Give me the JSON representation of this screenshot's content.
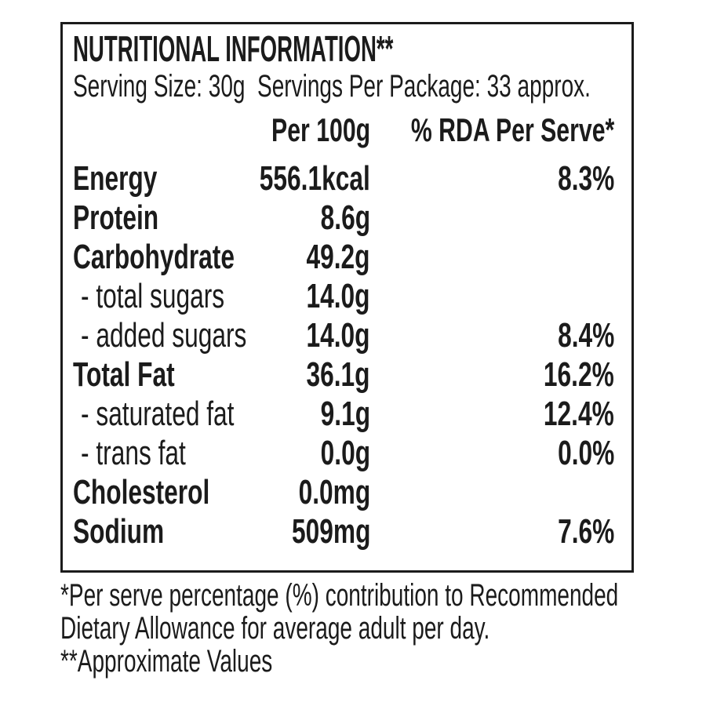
{
  "label": {
    "title": "NUTRITIONAL INFORMATION**",
    "serving_line": "Serving Size: 30g  Servings Per Package: 33 approx.",
    "columns": {
      "per_100g": "Per 100g",
      "rda": "% RDA Per Serve*"
    },
    "rows": [
      {
        "name": "Energy",
        "value": "556.1kcal",
        "rda": "8.3%"
      },
      {
        "name": "Protein",
        "value": "8.6g",
        "rda": ""
      },
      {
        "name": "Carbohydrate",
        "value": "49.2g",
        "rda": ""
      },
      {
        "name": "- total sugars",
        "value": "14.0g",
        "rda": ""
      },
      {
        "name": "- added sugars",
        "value": "14.0g",
        "rda": "8.4%"
      },
      {
        "name": "Total Fat",
        "value": "36.1g",
        "rda": "16.2%"
      },
      {
        "name": "- saturated fat",
        "value": "9.1g",
        "rda": "12.4%"
      },
      {
        "name": "- trans fat",
        "value": "0.0g",
        "rda": "0.0%"
      },
      {
        "name": "Cholesterol",
        "value": "0.0mg",
        "rda": ""
      },
      {
        "name": "Sodium",
        "value": "509mg",
        "rda": "7.6%"
      }
    ],
    "footnotes": [
      "*Per serve percentage (%) contribution to Recommended",
      "Dietary Allowance for average adult per day.",
      "**Approximate Values"
    ]
  },
  "colors": {
    "background": "#ffffff",
    "text": "#1b1b1b",
    "border": "#1b1b1b"
  }
}
